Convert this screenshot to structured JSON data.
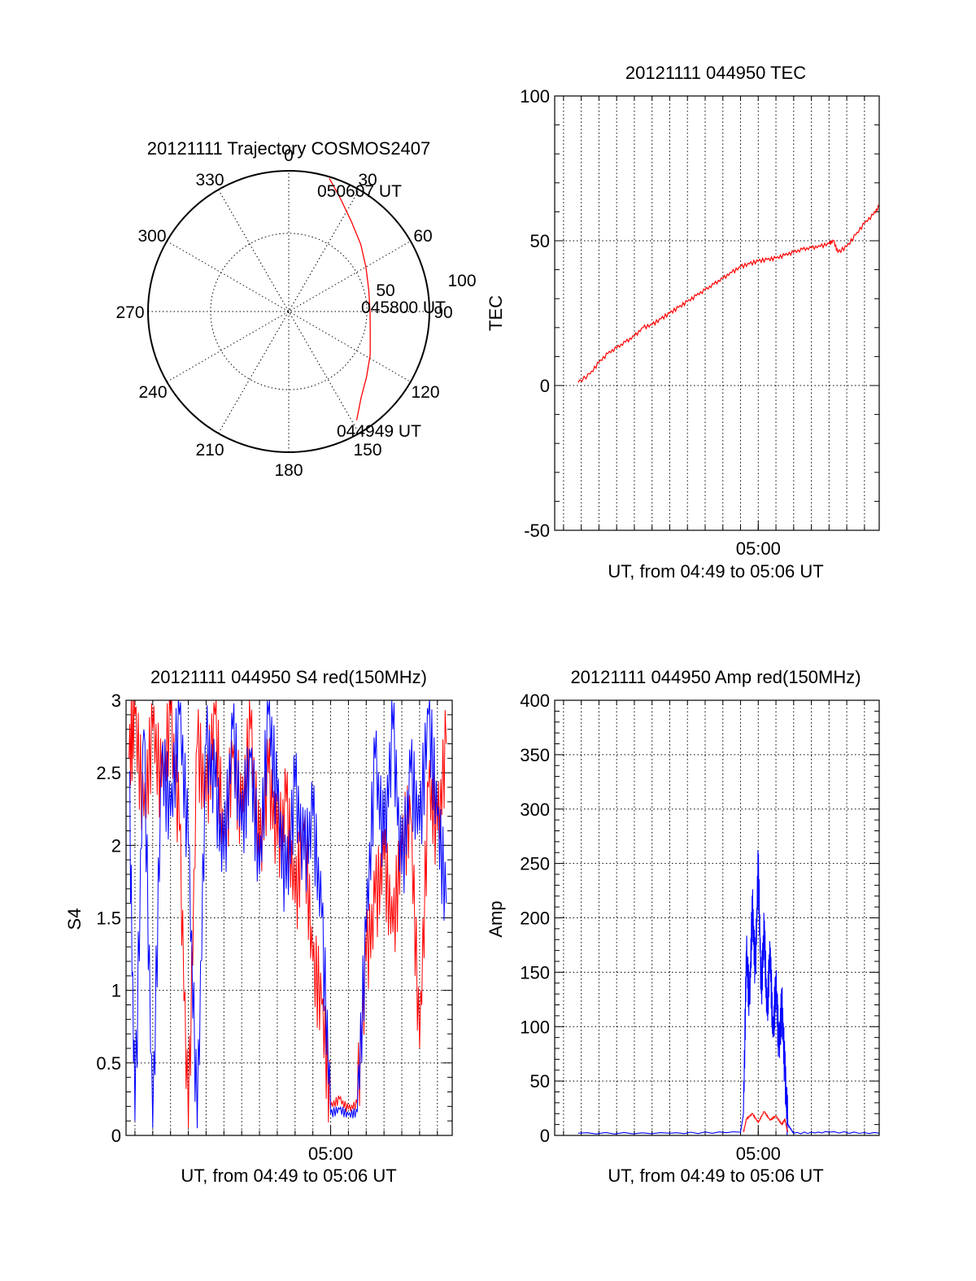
{
  "chart_data": [
    {
      "type": "polar",
      "title": "20121111 Trajectory COSMOS2407",
      "azimuth_labels": [
        "0",
        "30",
        "60",
        "90",
        "120",
        "150",
        "180",
        "210",
        "240",
        "270",
        "300",
        "330"
      ],
      "radial_labels": [
        "50",
        "100"
      ],
      "trajectory_color": "#ff0000",
      "annotations": [
        {
          "text": "050607 UT",
          "az": 17,
          "zen": 89
        },
        {
          "text": "045800 UT",
          "az": 88,
          "zen": 52
        },
        {
          "text": "044949 UT",
          "az": 148,
          "zen": 82
        }
      ],
      "trajectory": [
        {
          "az": 17,
          "zen": 89
        },
        {
          "az": 25,
          "zen": 79
        },
        {
          "az": 35,
          "zen": 70
        },
        {
          "az": 47,
          "zen": 63
        },
        {
          "az": 60,
          "zen": 57
        },
        {
          "az": 75,
          "zen": 53
        },
        {
          "az": 90,
          "zen": 52
        },
        {
          "az": 105,
          "zen": 54
        },
        {
          "az": 118,
          "zen": 59
        },
        {
          "az": 130,
          "zen": 65
        },
        {
          "az": 140,
          "zen": 72
        },
        {
          "az": 148,
          "zen": 82
        }
      ]
    },
    {
      "type": "line",
      "title": "20121111 044950 TEC",
      "xlabel": "UT, from 04:49 to 05:06 UT",
      "ylabel": "TEC",
      "xlim": [
        "04:48:30",
        "05:06:50"
      ],
      "ylim": [
        -50,
        100
      ],
      "yticks": [
        "-50",
        "0",
        "50",
        "100"
      ],
      "xtick_labels": [
        "05:00"
      ],
      "xtick_values": [
        "05:00:00"
      ],
      "grid": true,
      "series": [
        {
          "color": "#ff0000",
          "x": [
            "04:49:49",
            "04:50:30",
            "04:51:00",
            "04:51:30",
            "04:52:00",
            "04:52:30",
            "04:53:00",
            "04:53:30",
            "04:54:00",
            "04:54:30",
            "04:55:00",
            "04:55:30",
            "04:56:00",
            "04:56:30",
            "04:57:00",
            "04:57:30",
            "04:58:00",
            "04:58:30",
            "04:59:00",
            "04:59:30",
            "05:00:00",
            "05:00:30",
            "05:01:00",
            "05:01:30",
            "05:02:00",
            "05:02:30",
            "05:03:00",
            "05:03:30",
            "05:04:00",
            "05:04:15",
            "05:04:30",
            "05:05:00",
            "05:05:30",
            "05:06:00",
            "05:06:30",
            "05:06:50"
          ],
          "y": [
            1,
            4,
            8,
            11,
            13,
            15,
            17,
            20,
            21,
            23,
            25,
            27,
            29,
            31,
            33,
            35,
            37,
            39,
            41,
            42,
            43,
            43.5,
            44,
            45,
            46,
            47,
            47.5,
            48,
            49,
            50,
            46,
            48,
            52,
            56,
            59,
            62
          ]
        }
      ]
    },
    {
      "type": "line",
      "title": "20121111 044950 S4 red(150MHz)",
      "xlabel": "UT, from 04:49 to 05:06 UT",
      "ylabel": "S4",
      "xlim": [
        "04:48:30",
        "05:06:50"
      ],
      "ylim": [
        0,
        3
      ],
      "yticks": [
        "0",
        "0.5",
        "1",
        "1.5",
        "2",
        "2.5",
        "3"
      ],
      "xtick_labels": [
        "05:00"
      ],
      "xtick_values": [
        "05:00:00"
      ],
      "grid": true,
      "series": [
        {
          "color": "#ff0000",
          "x": [
            "04:48:40",
            "04:49:00",
            "04:49:30",
            "04:50:00",
            "04:50:30",
            "04:51:00",
            "04:51:30",
            "04:52:00",
            "04:52:30",
            "04:53:00",
            "04:53:30",
            "04:54:00",
            "04:54:30",
            "04:55:00",
            "04:55:30",
            "04:56:00",
            "04:56:30",
            "04:57:00",
            "04:57:30",
            "04:58:00",
            "04:58:30",
            "04:59:00",
            "04:59:30",
            "05:00:00",
            "05:00:30",
            "05:01:00",
            "05:01:30",
            "05:02:00",
            "05:02:30",
            "05:03:00",
            "05:03:30",
            "05:04:00",
            "05:04:30",
            "05:05:00",
            "05:05:30",
            "05:06:00",
            "05:06:30"
          ],
          "y": [
            2.6,
            2.9,
            2.2,
            2.8,
            2.4,
            2.9,
            2.1,
            0.05,
            2.7,
            2.3,
            2.9,
            2.0,
            2.6,
            2.2,
            2.8,
            1.9,
            2.5,
            2.0,
            2.3,
            1.6,
            2.1,
            1.2,
            0.9,
            0.2,
            0.25,
            0.18,
            0.22,
            1.2,
            1.6,
            1.9,
            1.4,
            2.0,
            2.2,
            0.6,
            2.4,
            2.1,
            2.7
          ]
        },
        {
          "color": "#0000ff",
          "x": [
            "04:48:40",
            "04:49:00",
            "04:49:30",
            "04:50:00",
            "04:50:30",
            "04:51:00",
            "04:51:30",
            "04:52:00",
            "04:52:30",
            "04:53:00",
            "04:53:30",
            "04:54:00",
            "04:54:30",
            "04:55:00",
            "04:55:30",
            "04:56:00",
            "04:56:30",
            "04:57:00",
            "04:57:30",
            "04:58:00",
            "04:58:30",
            "04:59:00",
            "04:59:30",
            "05:00:00",
            "05:00:30",
            "05:01:00",
            "05:01:30",
            "05:02:00",
            "05:02:30",
            "05:03:00",
            "05:03:30",
            "05:04:00",
            "05:04:30",
            "05:05:00",
            "05:05:30",
            "05:06:00",
            "05:06:30"
          ],
          "y": [
            2.5,
            0.1,
            2.8,
            0.05,
            2.6,
            2.2,
            2.9,
            2.0,
            0.05,
            2.7,
            2.4,
            1.9,
            2.8,
            2.1,
            2.6,
            1.8,
            2.9,
            2.3,
            1.7,
            2.4,
            1.9,
            2.2,
            1.5,
            0.15,
            0.18,
            0.14,
            0.16,
            1.4,
            2.6,
            2.0,
            2.8,
            1.8,
            2.5,
            2.1,
            2.9,
            2.2,
            1.6
          ]
        }
      ]
    },
    {
      "type": "line",
      "title": "20121111 044950 Amp red(150MHz)",
      "xlabel": "UT, from 04:49 to 05:06 UT",
      "ylabel": "Amp",
      "xlim": [
        "04:48:30",
        "05:06:50"
      ],
      "ylim": [
        0,
        400
      ],
      "yticks": [
        "0",
        "50",
        "100",
        "150",
        "200",
        "250",
        "300",
        "350",
        "400"
      ],
      "xtick_labels": [
        "05:00"
      ],
      "xtick_values": [
        "05:00:00"
      ],
      "grid": true,
      "series": [
        {
          "color": "#0000ff",
          "x": [
            "04:49:49",
            "04:55:00",
            "04:59:00",
            "04:59:10",
            "04:59:20",
            "04:59:30",
            "04:59:40",
            "04:59:50",
            "05:00:00",
            "05:00:10",
            "05:00:20",
            "05:00:30",
            "05:00:40",
            "05:00:50",
            "05:01:00",
            "05:01:10",
            "05:01:20",
            "05:01:30",
            "05:01:40",
            "05:02:00",
            "05:04:00",
            "05:06:50"
          ],
          "y": [
            2,
            2,
            3,
            20,
            170,
            120,
            210,
            150,
            250,
            130,
            190,
            110,
            170,
            90,
            140,
            80,
            120,
            60,
            10,
            2,
            3,
            2
          ]
        },
        {
          "color": "#ff0000",
          "x": [
            "04:59:10",
            "04:59:20",
            "04:59:40",
            "05:00:00",
            "05:00:20",
            "05:00:40",
            "05:01:00",
            "05:01:20",
            "05:01:30",
            "05:01:40"
          ],
          "y": [
            3,
            15,
            20,
            12,
            22,
            14,
            18,
            10,
            15,
            3
          ]
        }
      ]
    }
  ]
}
